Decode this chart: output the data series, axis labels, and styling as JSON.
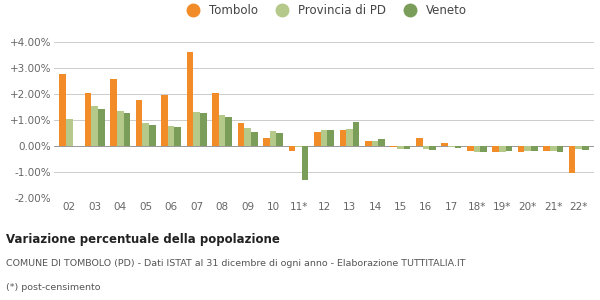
{
  "categories": [
    "02",
    "03",
    "04",
    "05",
    "06",
    "07",
    "08",
    "09",
    "10",
    "11*",
    "12",
    "13",
    "14",
    "15",
    "16",
    "17",
    "18*",
    "19*",
    "20*",
    "21*",
    "22*"
  ],
  "tombolo": [
    2.75,
    2.05,
    2.58,
    1.75,
    1.98,
    3.6,
    2.02,
    0.9,
    0.3,
    -0.2,
    0.55,
    0.62,
    0.2,
    -0.05,
    0.3,
    0.1,
    -0.2,
    -0.22,
    -0.22,
    -0.18,
    -1.05
  ],
  "provincia_pd": [
    1.02,
    1.55,
    1.35,
    0.88,
    0.75,
    1.3,
    1.2,
    0.68,
    0.57,
    -0.05,
    0.6,
    0.65,
    0.2,
    -0.12,
    -0.12,
    -0.05,
    -0.25,
    -0.22,
    -0.2,
    -0.2,
    -0.1
  ],
  "veneto": [
    0.0,
    1.42,
    1.28,
    0.8,
    0.72,
    1.25,
    1.1,
    0.52,
    0.5,
    -1.32,
    0.62,
    0.93,
    0.25,
    -0.1,
    -0.15,
    -0.08,
    -0.22,
    -0.2,
    -0.18,
    -0.22,
    -0.15
  ],
  "color_tombolo": "#f28c28",
  "color_provincia": "#b5c98a",
  "color_veneto": "#7a9e5a",
  "legend_labels": [
    "Tombolo",
    "Provincia di PD",
    "Veneto"
  ],
  "ylim": [
    -2.0,
    4.0
  ],
  "yticks": [
    -2.0,
    -1.0,
    0.0,
    1.0,
    2.0,
    3.0,
    4.0
  ],
  "title": "Variazione percentuale della popolazione",
  "subtitle": "COMUNE DI TOMBOLO (PD) - Dati ISTAT al 31 dicembre di ogni anno - Elaborazione TUTTITALIA.IT",
  "footnote": "(*) post-censimento",
  "bg_color": "#ffffff",
  "grid_color": "#cccccc"
}
